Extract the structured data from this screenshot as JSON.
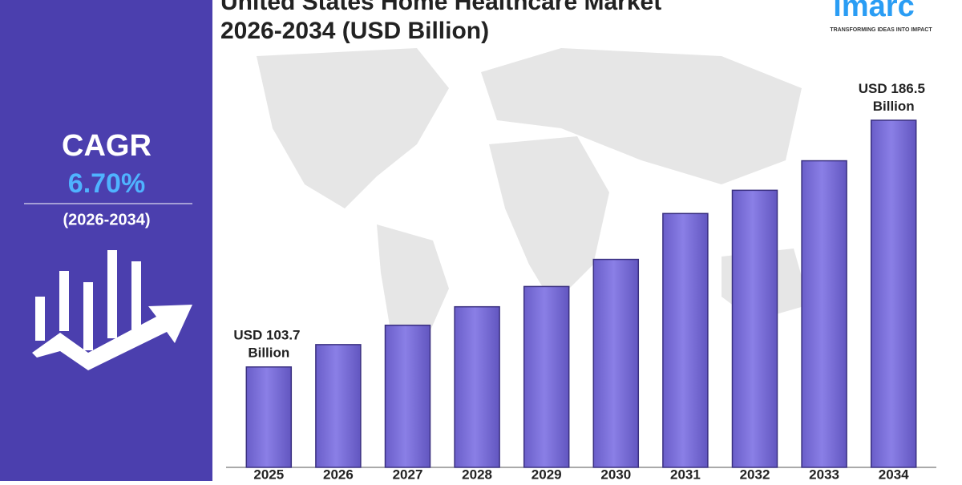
{
  "chart_data": {
    "type": "bar",
    "title": "United States Home Healthcare Market",
    "subtitle": "2026-2034 (USD Billion)",
    "categories": [
      "2025",
      "2026",
      "2027",
      "2028",
      "2029",
      "2030",
      "2031",
      "2032",
      "2033",
      "2034"
    ],
    "values": [
      103.7,
      111.2,
      117.7,
      123.9,
      130.7,
      139.8,
      155.2,
      163.0,
      172.9,
      186.5
    ],
    "value_labels": [
      "USD 103.7 Billion",
      null,
      null,
      null,
      null,
      null,
      null,
      null,
      null,
      "USD 186.5 Billion"
    ],
    "color": "#7b6fdb",
    "ylim": [
      70,
      190
    ],
    "cagr_label": "CAGR",
    "cagr_value": "6.70%",
    "cagr_period": "(2026-2034)",
    "logo": "imarc",
    "tagline": "TRANSFORMING IDEAS INTO IMPACT"
  }
}
